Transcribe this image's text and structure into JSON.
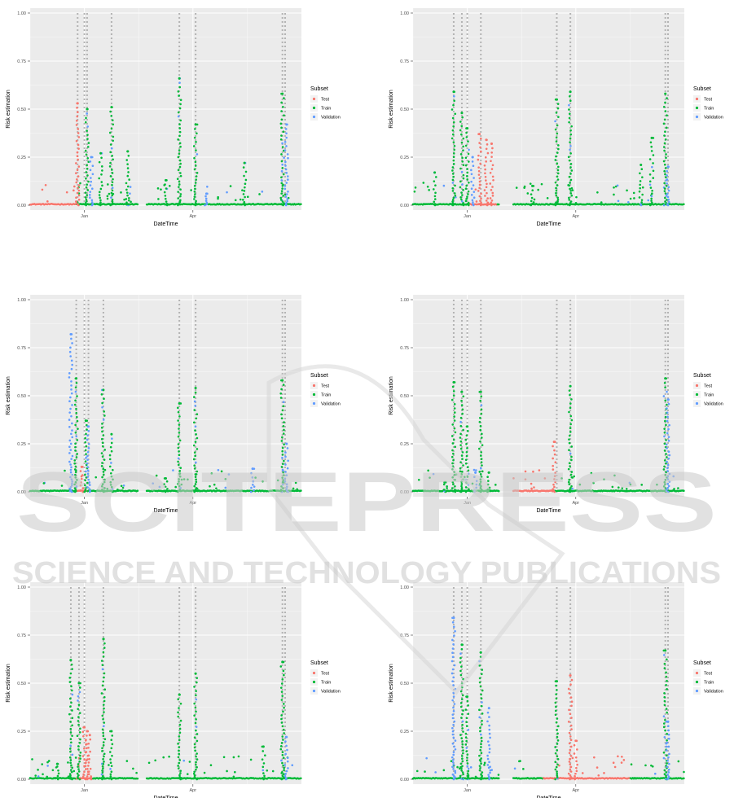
{
  "watermark": {
    "brand": "SCITEPRESS",
    "tagline": "SCIENCE AND TECHNOLOGY PUBLICATIONS"
  },
  "colors": {
    "panel_bg": "#ebebeb",
    "grid": "#ffffff",
    "Test": "#f8766d",
    "Train": "#00ba38",
    "Validation": "#619cff",
    "event_markers": "#b3b3b3"
  },
  "chart_data": [
    {
      "type": "scatter",
      "xlabel": "DateTime",
      "ylabel": "Risk estimation",
      "x_ticks": [
        "Jan",
        "Apr"
      ],
      "y_ticks": [
        "0.00",
        "0.25",
        "0.50",
        "0.75",
        "1.00"
      ],
      "ylim": [
        0,
        1
      ],
      "legend": {
        "title": "Subset",
        "entries": [
          "Test",
          "Train",
          "Validation"
        ],
        "position": "right"
      },
      "test_region": [
        0.0,
        0.17
      ],
      "segments": [
        [
          0.0,
          0.4
        ],
        [
          0.43,
          1.0
        ]
      ],
      "spikes": [
        {
          "x": 0.175,
          "subset": "Test",
          "max": 0.53
        },
        {
          "x": 0.21,
          "subset": "Train",
          "max": 0.5
        },
        {
          "x": 0.225,
          "subset": "Validation",
          "max": 0.25
        },
        {
          "x": 0.26,
          "subset": "Train",
          "max": 0.27
        },
        {
          "x": 0.3,
          "subset": "Train",
          "max": 0.51
        },
        {
          "x": 0.36,
          "subset": "Train",
          "max": 0.28
        },
        {
          "x": 0.5,
          "subset": "Train",
          "max": 0.13
        },
        {
          "x": 0.55,
          "subset": "Train",
          "max": 0.66
        },
        {
          "x": 0.61,
          "subset": "Train",
          "max": 0.42
        },
        {
          "x": 0.65,
          "subset": "Validation",
          "max": 0.06
        },
        {
          "x": 0.79,
          "subset": "Train",
          "max": 0.22
        },
        {
          "x": 0.93,
          "subset": "Train",
          "max": 0.58
        },
        {
          "x": 0.945,
          "subset": "Validation",
          "max": 0.42
        }
      ],
      "events": [
        0.175,
        0.2,
        0.21,
        0.3,
        0.55,
        0.61,
        0.93,
        0.94
      ]
    },
    {
      "type": "scatter",
      "xlabel": "DateTime",
      "ylabel": "Risk estimation",
      "x_ticks": [
        "Jan",
        "Apr"
      ],
      "y_ticks": [
        "0.00",
        "0.25",
        "0.50",
        "0.75",
        "1.00"
      ],
      "ylim": [
        0,
        1
      ],
      "legend": {
        "title": "Subset",
        "entries": [
          "Test",
          "Train",
          "Validation"
        ],
        "position": "right"
      },
      "test_region": [
        0.21,
        0.31
      ],
      "segments": [
        [
          0.0,
          0.32
        ],
        [
          0.37,
          1.0
        ]
      ],
      "spikes": [
        {
          "x": 0.08,
          "subset": "Train",
          "max": 0.17
        },
        {
          "x": 0.15,
          "subset": "Train",
          "max": 0.59
        },
        {
          "x": 0.18,
          "subset": "Train",
          "max": 0.48
        },
        {
          "x": 0.2,
          "subset": "Train",
          "max": 0.4
        },
        {
          "x": 0.22,
          "subset": "Validation",
          "max": 0.25
        },
        {
          "x": 0.245,
          "subset": "Test",
          "max": 0.37
        },
        {
          "x": 0.27,
          "subset": "Test",
          "max": 0.34
        },
        {
          "x": 0.29,
          "subset": "Test",
          "max": 0.32
        },
        {
          "x": 0.44,
          "subset": "Train",
          "max": 0.1
        },
        {
          "x": 0.53,
          "subset": "Train",
          "max": 0.55
        },
        {
          "x": 0.58,
          "subset": "Train",
          "max": 0.59
        },
        {
          "x": 0.84,
          "subset": "Train",
          "max": 0.21
        },
        {
          "x": 0.88,
          "subset": "Train",
          "max": 0.35
        },
        {
          "x": 0.93,
          "subset": "Train",
          "max": 0.58
        },
        {
          "x": 0.94,
          "subset": "Validation",
          "max": 0.2
        }
      ],
      "events": [
        0.15,
        0.18,
        0.2,
        0.25,
        0.53,
        0.58,
        0.93,
        0.94
      ]
    },
    {
      "type": "scatter",
      "xlabel": "DateTime",
      "ylabel": "Risk estimation",
      "x_ticks": [
        "Jan",
        "Apr"
      ],
      "y_ticks": [
        "0.00",
        "0.25",
        "0.50",
        "0.75",
        "1.00"
      ],
      "ylim": [
        0,
        1
      ],
      "legend": {
        "title": "Subset",
        "entries": [
          "Test",
          "Train",
          "Validation"
        ],
        "position": "right"
      },
      "test_region": [
        0.17,
        0.21
      ],
      "segments": [
        [
          0.0,
          0.4
        ],
        [
          0.43,
          1.0
        ]
      ],
      "spikes": [
        {
          "x": 0.15,
          "subset": "Validation",
          "max": 0.82
        },
        {
          "x": 0.17,
          "subset": "Train",
          "max": 0.59
        },
        {
          "x": 0.19,
          "subset": "Test",
          "max": 0.13
        },
        {
          "x": 0.205,
          "subset": "Train",
          "max": 0.37
        },
        {
          "x": 0.215,
          "subset": "Validation",
          "max": 0.34
        },
        {
          "x": 0.27,
          "subset": "Train",
          "max": 0.53
        },
        {
          "x": 0.3,
          "subset": "Train",
          "max": 0.3
        },
        {
          "x": 0.5,
          "subset": "Train",
          "max": 0.07
        },
        {
          "x": 0.55,
          "subset": "Train",
          "max": 0.46
        },
        {
          "x": 0.61,
          "subset": "Train",
          "max": 0.54
        },
        {
          "x": 0.82,
          "subset": "Validation",
          "max": 0.12
        },
        {
          "x": 0.93,
          "subset": "Train",
          "max": 0.58
        },
        {
          "x": 0.945,
          "subset": "Validation",
          "max": 0.25
        }
      ],
      "events": [
        0.17,
        0.2,
        0.215,
        0.27,
        0.55,
        0.61,
        0.93,
        0.94
      ]
    },
    {
      "type": "scatter",
      "xlabel": "DateTime",
      "ylabel": "Risk estimation",
      "x_ticks": [
        "Jan",
        "Apr"
      ],
      "y_ticks": [
        "0.00",
        "0.25",
        "0.50",
        "0.75",
        "1.00"
      ],
      "ylim": [
        0,
        1
      ],
      "legend": {
        "title": "Subset",
        "entries": [
          "Test",
          "Train",
          "Validation"
        ],
        "position": "right"
      },
      "test_region": [
        0.37,
        0.52
      ],
      "segments": [
        [
          0.0,
          0.32
        ],
        [
          0.37,
          1.0
        ]
      ],
      "spikes": [
        {
          "x": 0.12,
          "subset": "Train",
          "max": 0.05
        },
        {
          "x": 0.15,
          "subset": "Train",
          "max": 0.57
        },
        {
          "x": 0.18,
          "subset": "Train",
          "max": 0.52
        },
        {
          "x": 0.2,
          "subset": "Train",
          "max": 0.34
        },
        {
          "x": 0.23,
          "subset": "Validation",
          "max": 0.1
        },
        {
          "x": 0.25,
          "subset": "Train",
          "max": 0.52
        },
        {
          "x": 0.28,
          "subset": "Train",
          "max": 0.1
        },
        {
          "x": 0.52,
          "subset": "Test",
          "max": 0.26
        },
        {
          "x": 0.58,
          "subset": "Train",
          "max": 0.55
        },
        {
          "x": 0.93,
          "subset": "Train",
          "max": 0.59
        },
        {
          "x": 0.94,
          "subset": "Validation",
          "max": 0.48
        }
      ],
      "events": [
        0.15,
        0.18,
        0.2,
        0.25,
        0.53,
        0.58,
        0.93,
        0.94
      ]
    },
    {
      "type": "scatter",
      "xlabel": "DateTime",
      "ylabel": "Risk estimation",
      "x_ticks": [
        "Jan",
        "Apr"
      ],
      "y_ticks": [
        "0.00",
        "0.25",
        "0.50",
        "0.75",
        "1.00"
      ],
      "ylim": [
        0,
        1
      ],
      "legend": {
        "title": "Subset",
        "entries": [
          "Test",
          "Train",
          "Validation"
        ],
        "position": "right"
      },
      "test_region": [
        0.17,
        0.23
      ],
      "segments": [
        [
          0.0,
          0.4
        ],
        [
          0.43,
          1.0
        ]
      ],
      "spikes": [
        {
          "x": 0.1,
          "subset": "Train",
          "max": 0.08
        },
        {
          "x": 0.15,
          "subset": "Train",
          "max": 0.62
        },
        {
          "x": 0.18,
          "subset": "Train",
          "max": 0.5
        },
        {
          "x": 0.2,
          "subset": "Test",
          "max": 0.27
        },
        {
          "x": 0.21,
          "subset": "Test",
          "max": 0.25
        },
        {
          "x": 0.22,
          "subset": "Test",
          "max": 0.23
        },
        {
          "x": 0.27,
          "subset": "Train",
          "max": 0.73
        },
        {
          "x": 0.3,
          "subset": "Train",
          "max": 0.25
        },
        {
          "x": 0.55,
          "subset": "Train",
          "max": 0.44
        },
        {
          "x": 0.61,
          "subset": "Train",
          "max": 0.55
        },
        {
          "x": 0.86,
          "subset": "Train",
          "max": 0.17
        },
        {
          "x": 0.93,
          "subset": "Train",
          "max": 0.61
        },
        {
          "x": 0.945,
          "subset": "Validation",
          "max": 0.22
        }
      ],
      "events": [
        0.15,
        0.18,
        0.2,
        0.27,
        0.55,
        0.61,
        0.93,
        0.94
      ]
    },
    {
      "type": "scatter",
      "xlabel": "DateTime",
      "ylabel": "Risk estimation",
      "x_ticks": [
        "Jan",
        "Apr"
      ],
      "y_ticks": [
        "0.00",
        "0.25",
        "0.50",
        "0.75",
        "1.00"
      ],
      "ylim": [
        0,
        1
      ],
      "legend": {
        "title": "Subset",
        "entries": [
          "Test",
          "Train",
          "Validation"
        ],
        "position": "right"
      },
      "test_region": [
        0.48,
        0.8
      ],
      "segments": [
        [
          0.0,
          0.32
        ],
        [
          0.37,
          1.0
        ]
      ],
      "spikes": [
        {
          "x": 0.15,
          "subset": "Validation",
          "max": 0.84
        },
        {
          "x": 0.18,
          "subset": "Train",
          "max": 0.7
        },
        {
          "x": 0.2,
          "subset": "Train",
          "max": 0.43
        },
        {
          "x": 0.25,
          "subset": "Train",
          "max": 0.66
        },
        {
          "x": 0.28,
          "subset": "Validation",
          "max": 0.37
        },
        {
          "x": 0.53,
          "subset": "Train",
          "max": 0.51
        },
        {
          "x": 0.58,
          "subset": "Test",
          "max": 0.54
        },
        {
          "x": 0.6,
          "subset": "Test",
          "max": 0.2
        },
        {
          "x": 0.93,
          "subset": "Train",
          "max": 0.67
        },
        {
          "x": 0.94,
          "subset": "Validation",
          "max": 0.3
        }
      ],
      "events": [
        0.15,
        0.18,
        0.2,
        0.25,
        0.53,
        0.58,
        0.93,
        0.94
      ]
    }
  ]
}
